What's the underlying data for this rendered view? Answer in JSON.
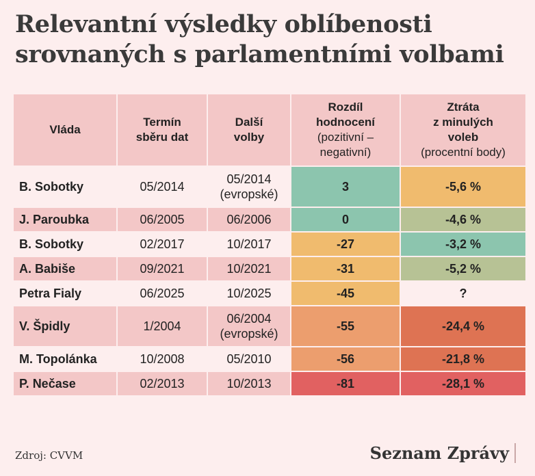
{
  "title_line1": "Relevantní výsledky oblíbenosti",
  "title_line2": "srovnaných s parlamentními volbami",
  "chart_data": {
    "type": "table",
    "title": "Relevantní výsledky oblíbenosti srovnaných s parlamentními volbami",
    "headers": {
      "vlada": "Vláda",
      "termin_1": "Termín",
      "termin_2": "sběru dat",
      "dalsi_1": "Další",
      "dalsi_2": "volby",
      "rozdil_1": "Rozdíl",
      "rozdil_2": "hodnocení",
      "rozdil_3": "(pozitivní –",
      "rozdil_4": "negativní)",
      "ztrata_1": "Ztráta",
      "ztrata_2": "z minulých",
      "ztrata_3": "voleb",
      "ztrata_4": "(procentní body)"
    },
    "rows": [
      {
        "vlada": "B. Sobotky",
        "termin": "05/2014",
        "volby": "05/2014",
        "volby_note": "(evropské)",
        "rozdil": "3",
        "ztrata": "-5,6 %",
        "rozdil_color": "#8cc5ae",
        "ztrata_color": "#f0bb6e"
      },
      {
        "vlada": "J. Paroubka",
        "termin": "06/2005",
        "volby": "06/2006",
        "volby_note": "",
        "rozdil": "0",
        "ztrata": "-4,6 %",
        "rozdil_color": "#8cc5ae",
        "ztrata_color": "#b7c295"
      },
      {
        "vlada": "B. Sobotky",
        "termin": "02/2017",
        "volby": "10/2017",
        "volby_note": "",
        "rozdil": "-27",
        "ztrata": "-3,2 %",
        "rozdil_color": "#f0bb6e",
        "ztrata_color": "#8cc5ae"
      },
      {
        "vlada": "A. Babiše",
        "termin": "09/2021",
        "volby": "10/2021",
        "volby_note": "",
        "rozdil": "-31",
        "ztrata": "-5,2 %",
        "rozdil_color": "#f0bb6e",
        "ztrata_color": "#b7c295"
      },
      {
        "vlada": "Petra Fialy",
        "termin": "06/2025",
        "volby": "10/2025",
        "volby_note": "",
        "rozdil": "-45",
        "ztrata": "?",
        "rozdil_color": "#f0bb6e",
        "ztrata_color": "#fdeeee"
      },
      {
        "vlada": "V. Špidly",
        "termin": "1/2004",
        "volby": "06/2004",
        "volby_note": "(evropské)",
        "rozdil": "-55",
        "ztrata": "-24,4 %",
        "rozdil_color": "#ec9e6e",
        "ztrata_color": "#de7353"
      },
      {
        "vlada": "M. Topolánka",
        "termin": "10/2008",
        "volby": "05/2010",
        "volby_note": "",
        "rozdil": "-56",
        "ztrata": "-21,8 %",
        "rozdil_color": "#ec9e6e",
        "ztrata_color": "#de7353"
      },
      {
        "vlada": "P. Nečase",
        "termin": "02/2013",
        "volby": "10/2013",
        "volby_note": "",
        "rozdil": "-81",
        "ztrata": "-28,1 %",
        "rozdil_color": "#e16161",
        "ztrata_color": "#e16161"
      }
    ]
  },
  "footer": {
    "source": "Zdroj: CVVM",
    "brand": "Seznam Zprávy"
  }
}
